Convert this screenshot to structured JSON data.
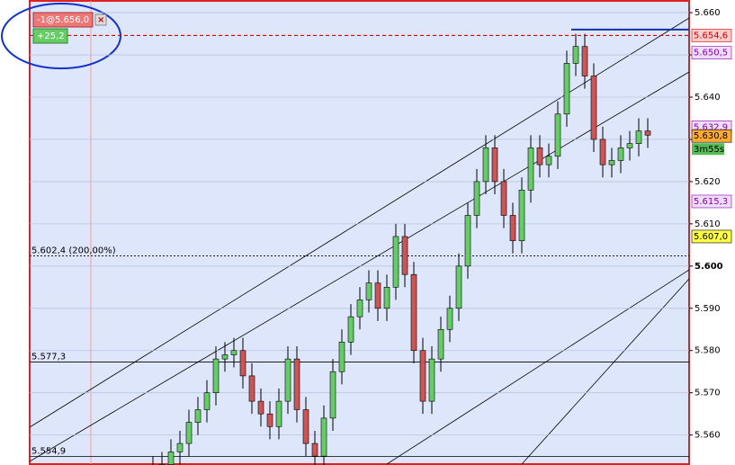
{
  "chart_data": {
    "type": "candlestick",
    "open": [
      5.55,
      5.552,
      5.553,
      5.556,
      5.558,
      5.563,
      5.566,
      5.57,
      5.578,
      5.579,
      5.58,
      5.574,
      5.568,
      5.565,
      5.562,
      5.568,
      5.578,
      5.566,
      5.558,
      5.555,
      5.564,
      5.575,
      5.582,
      5.588,
      5.592,
      5.596,
      5.59,
      5.595,
      5.607,
      5.598,
      5.58,
      5.568,
      5.578,
      5.585,
      5.59,
      5.6,
      5.612,
      5.62,
      5.628,
      5.62,
      5.612,
      5.606,
      5.618,
      5.628,
      5.624,
      5.626,
      5.636,
      5.648,
      5.652,
      5.645,
      5.63,
      5.624,
      5.625,
      5.628,
      5.629,
      5.632
    ],
    "high": [
      5.555,
      5.556,
      5.559,
      5.561,
      5.566,
      5.569,
      5.573,
      5.581,
      5.582,
      5.583,
      5.583,
      5.577,
      5.571,
      5.568,
      5.571,
      5.581,
      5.581,
      5.569,
      5.561,
      5.567,
      5.578,
      5.585,
      5.591,
      5.595,
      5.599,
      5.599,
      5.598,
      5.61,
      5.61,
      5.601,
      5.583,
      5.581,
      5.588,
      5.593,
      5.603,
      5.615,
      5.623,
      5.631,
      5.631,
      5.623,
      5.615,
      5.621,
      5.631,
      5.631,
      5.629,
      5.639,
      5.651,
      5.655,
      5.655,
      5.648,
      5.633,
      5.628,
      5.631,
      5.632,
      5.635,
      5.635
    ],
    "low": [
      5.547,
      5.549,
      5.55,
      5.553,
      5.555,
      5.56,
      5.563,
      5.567,
      5.575,
      5.576,
      5.571,
      5.565,
      5.562,
      5.559,
      5.559,
      5.565,
      5.563,
      5.555,
      5.552,
      5.552,
      5.561,
      5.572,
      5.579,
      5.585,
      5.589,
      5.587,
      5.587,
      5.592,
      5.595,
      5.577,
      5.565,
      5.565,
      5.575,
      5.582,
      5.587,
      5.597,
      5.609,
      5.617,
      5.617,
      5.609,
      5.603,
      5.603,
      5.615,
      5.621,
      5.621,
      5.623,
      5.633,
      5.645,
      5.642,
      5.627,
      5.621,
      5.621,
      5.622,
      5.625,
      5.626,
      5.628
    ],
    "close": [
      5.552,
      5.553,
      5.556,
      5.558,
      5.563,
      5.566,
      5.57,
      5.578,
      5.579,
      5.58,
      5.574,
      5.568,
      5.565,
      5.562,
      5.568,
      5.578,
      5.566,
      5.558,
      5.555,
      5.564,
      5.575,
      5.582,
      5.588,
      5.592,
      5.596,
      5.59,
      5.595,
      5.607,
      5.598,
      5.58,
      5.568,
      5.578,
      5.585,
      5.59,
      5.6,
      5.612,
      5.62,
      5.628,
      5.62,
      5.612,
      5.606,
      5.618,
      5.628,
      5.624,
      5.626,
      5.636,
      5.648,
      5.652,
      5.645,
      5.63,
      5.624,
      5.625,
      5.628,
      5.629,
      5.632,
      5.631
    ],
    "up_color": "#66cc66",
    "down_color": "#cc5555",
    "ylim": [
      5.5529,
      5.663
    ],
    "yticks": [
      {
        "value": 5.56,
        "label": "5.560"
      },
      {
        "value": 5.57,
        "label": "5.570"
      },
      {
        "value": 5.58,
        "label": "5.580"
      },
      {
        "value": 5.59,
        "label": "5.590"
      },
      {
        "value": 5.6,
        "label": "5.600"
      },
      {
        "value": 5.61,
        "label": "5.610"
      },
      {
        "value": 5.62,
        "label": "5.620"
      },
      {
        "value": 5.63,
        "label": "5.630"
      },
      {
        "value": 5.64,
        "label": "5.640"
      },
      {
        "value": 5.65,
        "label": "5.650"
      },
      {
        "value": 5.66,
        "label": "5.660"
      }
    ],
    "grid": true,
    "price_labels": [
      {
        "value": 5.6546,
        "label": "5.654,6",
        "color": "#ffcccc",
        "text_color": "#cc0000"
      },
      {
        "value": 5.6505,
        "label": "5.650,5",
        "color": "#eeddff",
        "text_color": "#8800aa"
      },
      {
        "value": 5.6329,
        "label": "5.632,9",
        "color": "#eeddff",
        "text_color": "#8800aa"
      },
      {
        "value": 5.6308,
        "label": "5.630,8",
        "color": "#ffaa33",
        "text_color": "#000000"
      },
      {
        "value": 5.6153,
        "label": "5.615,3",
        "color": "#eeddff",
        "text_color": "#8800aa"
      },
      {
        "value": 5.607,
        "label": "5.607,0",
        "color": "#ffff44",
        "text_color": "#000000"
      }
    ],
    "timer": "3m55s",
    "levels": [
      {
        "value": 5.6024,
        "label": "5.602,4 (200,00%)",
        "style": "dotted"
      },
      {
        "value": 5.5773,
        "label": "5.577,3",
        "style": "solid"
      },
      {
        "value": 5.5549,
        "label": "5.554,9",
        "style": "solid"
      }
    ],
    "order": {
      "value": 5.656,
      "label": "-1@5.656,0",
      "pnl": "+25,2"
    }
  }
}
